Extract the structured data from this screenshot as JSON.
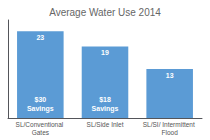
{
  "chart_data": {
    "type": "bar",
    "title": "Average Water Use 2014",
    "categories": [
      "SL/Conventional Gates",
      "SL/Side Inlet",
      "SL/SI/ Intermittent Flood"
    ],
    "values": [
      23,
      19,
      13
    ],
    "color": "#5B9BD5",
    "ylim": [
      0,
      26
    ],
    "data_labels": true,
    "tick_labels": "x",
    "grid": false,
    "annotations": [
      {
        "category": "SL/Conventional Gates",
        "text": "$30\nSavings"
      },
      {
        "category": "SL/Side Inlet",
        "text": "$18\nSavings"
      }
    ]
  }
}
